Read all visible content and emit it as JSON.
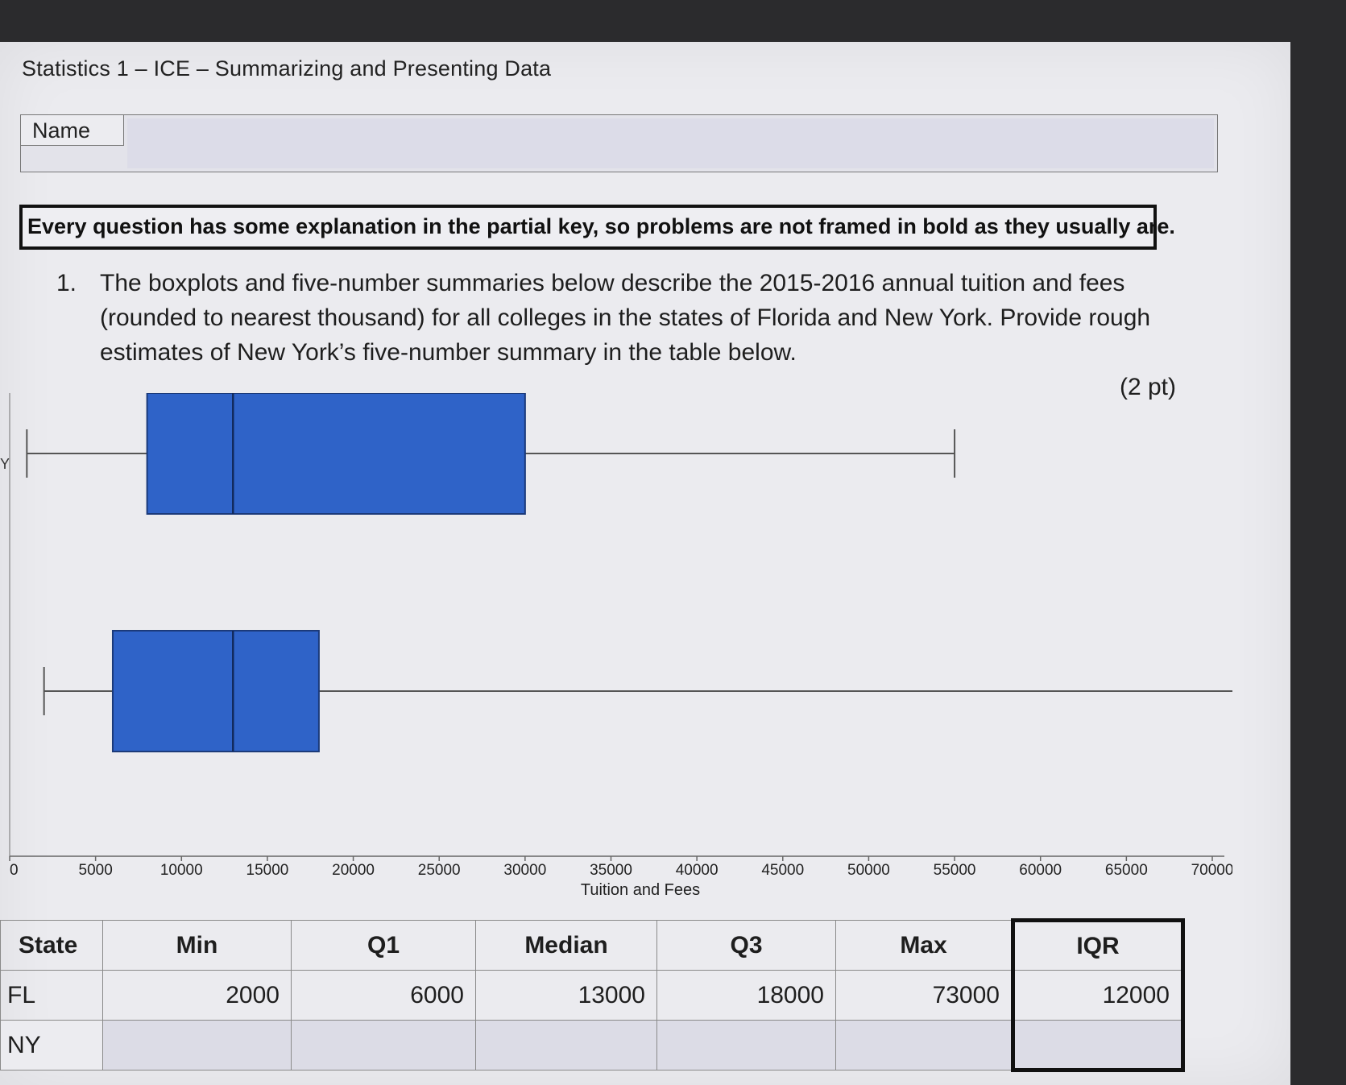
{
  "header": {
    "title": "Statistics 1 – ICE – Summarizing and Presenting Data",
    "name_label": "Name",
    "notice": "Every question has some explanation in the partial key, so problems are not framed in bold as they usually are."
  },
  "question": {
    "number": "1.",
    "text": "The boxplots and five-number summaries below describe the 2015-2016 annual tuition and fees (rounded to nearest thousand) for all colleges in the states of Florida and New York. Provide rough estimates of New York’s five-number summary in the table below.",
    "points": "(2 pt)"
  },
  "chart_data": {
    "type": "boxplot",
    "xlabel": "Tuition and Fees",
    "xlim": [
      0,
      70000
    ],
    "xticks": [
      "0",
      "5000",
      "10000",
      "15000",
      "20000",
      "25000",
      "30000",
      "35000",
      "40000",
      "45000",
      "50000",
      "55000",
      "60000",
      "65000",
      "70000"
    ],
    "y_category_visible": "Y",
    "series": [
      {
        "min": 1000,
        "q1": 8000,
        "median": 13000,
        "q3": 30000,
        "max": 55000
      },
      {
        "min": 2000,
        "q1": 6000,
        "median": 13000,
        "q3": 18000,
        "max": 73000
      }
    ],
    "box_color": "#2f63c8"
  },
  "table": {
    "headers": [
      "State",
      "Min",
      "Q1",
      "Median",
      "Q3",
      "Max",
      "IQR"
    ],
    "rows": [
      {
        "state": "FL",
        "values": [
          "2000",
          "6000",
          "13000",
          "18000",
          "73000",
          "12000"
        ]
      },
      {
        "state": "NY",
        "values": [
          "",
          "",
          "",
          "",
          "",
          ""
        ]
      }
    ]
  }
}
